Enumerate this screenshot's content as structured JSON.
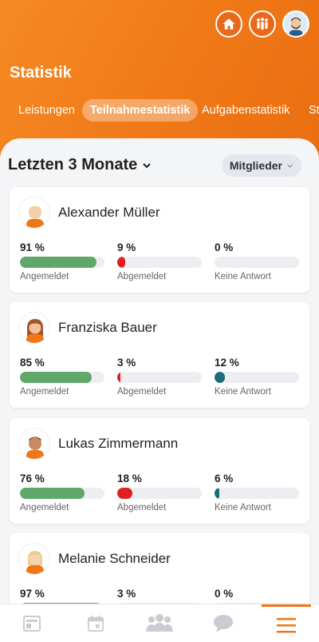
{
  "header": {
    "title": "Statistik",
    "tabs": [
      {
        "label": "Leistungen",
        "active": false
      },
      {
        "label": "Teilnahmestatistik",
        "active": true
      },
      {
        "label": "Aufgabenstatistik",
        "active": false
      },
      {
        "label": "St",
        "active": false
      }
    ],
    "icons": [
      "home-icon",
      "group-icon",
      "profile-avatar"
    ]
  },
  "filters": {
    "period": "Letzten 3 Monate",
    "members": "Mitglieder"
  },
  "stat_labels": {
    "registered": "Angemeldet",
    "deregistered": "Abgemeldet",
    "no_answer": "Keine Antwort"
  },
  "colors": {
    "accent": "#ef7716",
    "registered": "#5fa86a",
    "deregistered": "#e02020",
    "no_answer": "#1f6b7c"
  },
  "members": [
    {
      "name": "Alexander Müller",
      "registered": "91 %",
      "registered_value": 91,
      "deregistered": "9 %",
      "deregistered_value": 9,
      "no_answer": "0 %",
      "no_answer_value": 0
    },
    {
      "name": "Franziska Bauer",
      "registered": "85 %",
      "registered_value": 85,
      "deregistered": "3 %",
      "deregistered_value": 3,
      "no_answer": "12 %",
      "no_answer_value": 12
    },
    {
      "name": "Lukas Zimmermann",
      "registered": "76 %",
      "registered_value": 76,
      "deregistered": "18 %",
      "deregistered_value": 18,
      "no_answer": "6 %",
      "no_answer_value": 6
    },
    {
      "name": "Melanie Schneider",
      "registered": "97 %",
      "registered_value": 97,
      "deregistered": "3 %",
      "deregistered_value": 3,
      "no_answer": "0 %",
      "no_answer_value": 0
    }
  ],
  "bottom_nav": [
    {
      "icon": "news-icon",
      "active": false
    },
    {
      "icon": "calendar-icon",
      "active": false
    },
    {
      "icon": "team-icon",
      "active": false
    },
    {
      "icon": "chat-icon",
      "active": false
    },
    {
      "icon": "menu-icon",
      "active": true
    }
  ]
}
